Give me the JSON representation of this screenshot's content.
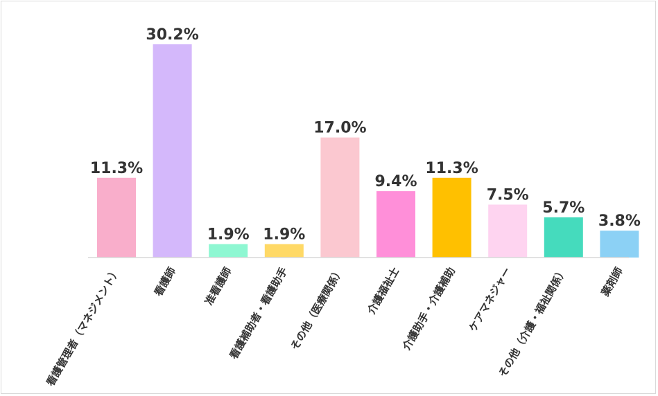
{
  "chart_data": {
    "type": "bar",
    "title": "",
    "xlabel": "",
    "ylabel": "",
    "ylim": [
      0,
      32
    ],
    "grid": false,
    "legend": "none",
    "categories": [
      "看護管理者（マネジメント）",
      "看護師",
      "准看護師",
      "看護補助者・看護助手",
      "その他（医療関係）",
      "介護福祉士",
      "介護助手・介護補助",
      "ケアマネジャー",
      "その他（介護・福祉関係）",
      "薬剤師"
    ],
    "values": [
      11.3,
      30.2,
      1.9,
      1.9,
      17.0,
      9.4,
      11.3,
      7.5,
      5.7,
      3.8
    ],
    "value_labels": [
      "11.3%",
      "30.2%",
      "1.9%",
      "1.9%",
      "17.0%",
      "9.4%",
      "11.3%",
      "7.5%",
      "5.7%",
      "3.8%"
    ],
    "colors": [
      "#F9AECB",
      "#D4B8FB",
      "#8EF7D2",
      "#FFD966",
      "#FBC8D0",
      "#FF8FD9",
      "#FFC000",
      "#FED4F0",
      "#45DBBD",
      "#8CD1F5"
    ]
  }
}
